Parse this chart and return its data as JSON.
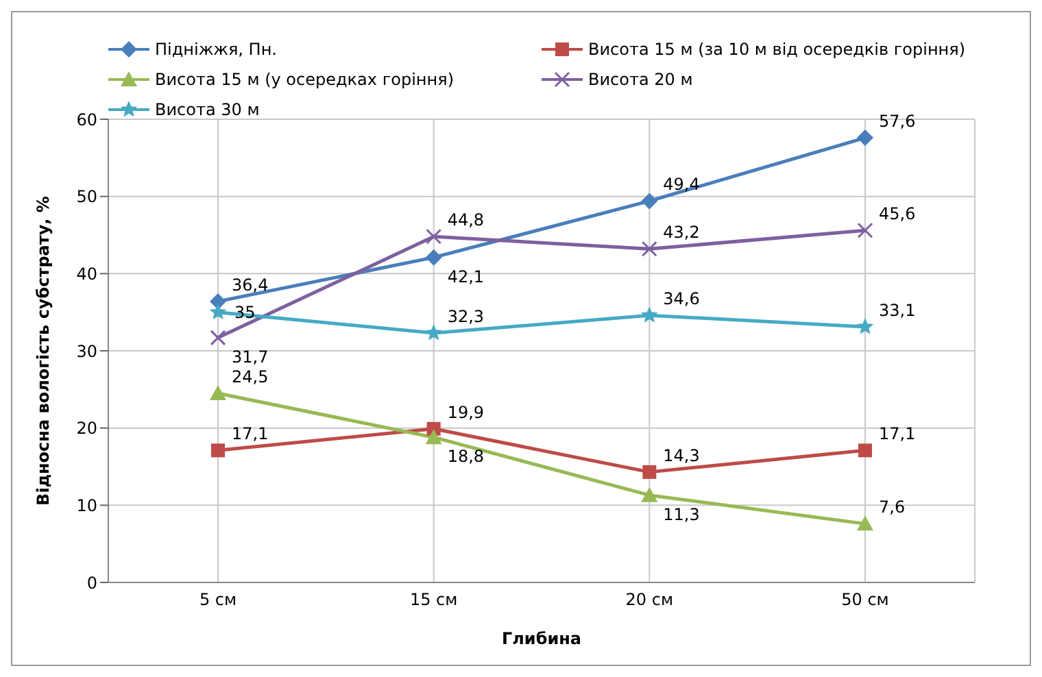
{
  "chart_data": {
    "type": "line",
    "xlabel": "Глибина",
    "ylabel": "Відносна вологість субстрату, %",
    "categories": [
      "5 см",
      "15 см",
      "20 см",
      "50 см"
    ],
    "ylim": [
      0,
      60
    ],
    "yticks": [
      0,
      10,
      20,
      30,
      40,
      50,
      60
    ],
    "grid": true,
    "legend": "top",
    "series": [
      {
        "name": "Підніжжя, Пн.",
        "color": "#4a7ebb",
        "marker": "diamond",
        "values": [
          36.4,
          42.1,
          49.4,
          57.6
        ],
        "value_labels": [
          "36,4",
          "42,1",
          "49,4",
          "57,6"
        ]
      },
      {
        "name": "Висота 15 м (за 10 м від осередків горіння)",
        "color": "#be4b48",
        "marker": "square",
        "values": [
          17.1,
          19.9,
          14.3,
          17.1
        ],
        "value_labels": [
          "17,1",
          "19,9",
          "14,3",
          "17,1"
        ]
      },
      {
        "name": "Висота 15 м (у осередках горіння)",
        "color": "#98b954",
        "marker": "triangle",
        "values": [
          24.5,
          18.8,
          11.3,
          7.6
        ],
        "value_labels": [
          "24,5",
          "18,8",
          "11,3",
          "7,6"
        ]
      },
      {
        "name": "Висота 20 м",
        "color": "#7d60a0",
        "marker": "cross",
        "values": [
          31.7,
          44.8,
          43.2,
          45.6
        ],
        "value_labels": [
          "31,7",
          "44,8",
          "43,2",
          "45,6"
        ]
      },
      {
        "name": "Висота 30 м",
        "color": "#46aac5",
        "marker": "star",
        "values": [
          35,
          32.3,
          34.6,
          33.1
        ],
        "value_labels": [
          "35",
          "32,3",
          "34,6",
          "33,1"
        ]
      }
    ]
  }
}
